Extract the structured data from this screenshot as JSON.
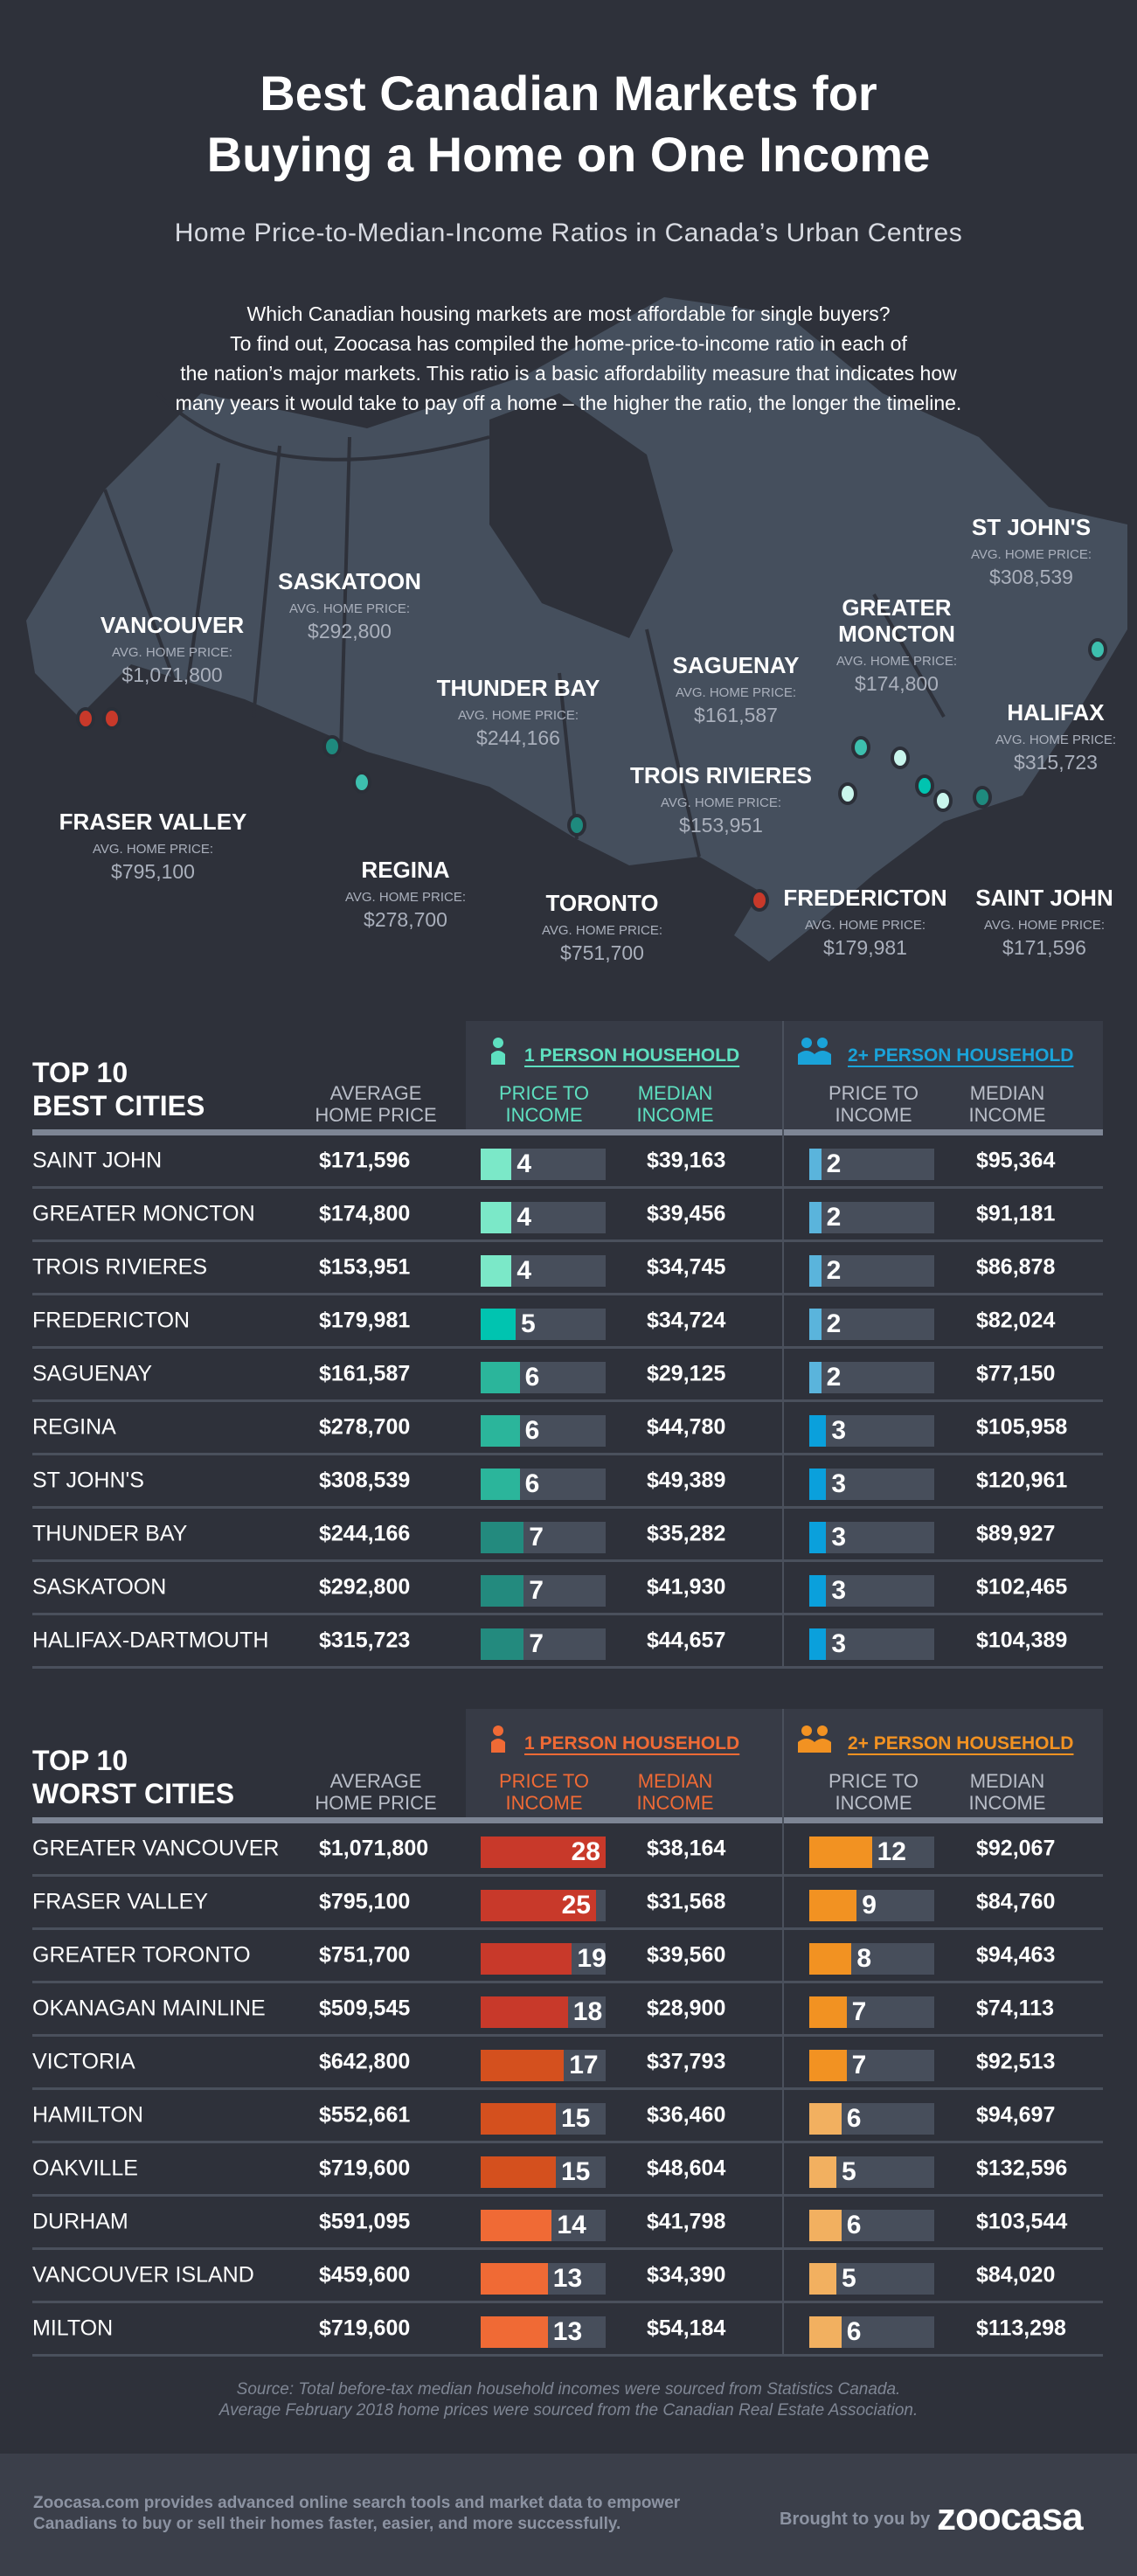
{
  "header": {
    "title_line1": "Best Canadian Markets for",
    "title_line2": "Buying a Home on One Income",
    "subtitle": "Home Price-to-Median-Income Ratios in Canada’s Urban Centres",
    "intro": [
      "Which Canadian housing markets are most affordable for single buyers?",
      "To find out, Zoocasa has compiled the home-price-to-income ratio in each of",
      "the nation’s major markets. This ratio is a basic affordability measure that indicates how",
      "many years it would take to pay off a home – the higher the ratio, the longer the timeline."
    ]
  },
  "map": {
    "price_label": "AVG. HOME PRICE:",
    "cities": [
      {
        "name": "VANCOUVER",
        "price": "$1,071,800",
        "color": "#c8392a"
      },
      {
        "name": "FRASER VALLEY",
        "price": "$795,100",
        "color": "#c8392a"
      },
      {
        "name": "SASKATOON",
        "price": "$292,800",
        "color": "#1e8a7e"
      },
      {
        "name": "REGINA",
        "price": "$278,700",
        "color": "#3dbfae"
      },
      {
        "name": "THUNDER BAY",
        "price": "$244,166",
        "color": "#1e8a7e"
      },
      {
        "name": "TORONTO",
        "price": "$751,700",
        "color": "#c8392a"
      },
      {
        "name": "SAGUENAY",
        "price": "$161,587",
        "color": "#3dbfae"
      },
      {
        "name": "TROIS RIVIERES",
        "price": "$153,951",
        "color": "#c9f5ec"
      },
      {
        "name": "GREATER",
        "name2": "MONCTON",
        "price": "$174,800",
        "color": "#c9f5ec"
      },
      {
        "name": "ST JOHN'S",
        "price": "$308,539",
        "color": "#3dbfae"
      },
      {
        "name": "HALIFAX",
        "price": "$315,723",
        "color": "#1e8a7e"
      },
      {
        "name": "FREDERICTON",
        "price": "$179,981",
        "color": "#00c4b0"
      },
      {
        "name": "SAINT JOHN",
        "price": "$171,596",
        "color": "#c9f5ec"
      }
    ]
  },
  "best": {
    "title1": "TOP 10",
    "title2": "BEST CITIES",
    "hh1": "1 PERSON HOUSEHOLD",
    "hh2": "2+ PERSON HOUSEHOLD",
    "accent1": "#5ee0c0",
    "accent2": "#1aa3d9",
    "cols": {
      "avg": "AVERAGE HOME PRICE",
      "pti": "PRICE TO INCOME",
      "med": "MEDIAN INCOME"
    },
    "rows": [
      {
        "city": "SAINT JOHN",
        "avg": "$171,596",
        "p1": 4,
        "m1": "$39,163",
        "p2": 2,
        "m2": "$95,364",
        "c1": "#7be8c8",
        "c2": "#5ab4dc"
      },
      {
        "city": "GREATER MONCTON",
        "avg": "$174,800",
        "p1": 4,
        "m1": "$39,456",
        "p2": 2,
        "m2": "$91,181",
        "c1": "#7be8c8",
        "c2": "#5ab4dc"
      },
      {
        "city": "TROIS RIVIERES",
        "avg": "$153,951",
        "p1": 4,
        "m1": "$34,745",
        "p2": 2,
        "m2": "$86,878",
        "c1": "#7be8c8",
        "c2": "#5ab4dc"
      },
      {
        "city": "FREDERICTON",
        "avg": "$179,981",
        "p1": 5,
        "m1": "$34,724",
        "p2": 2,
        "m2": "$82,024",
        "c1": "#00c4b0",
        "c2": "#5ab4dc"
      },
      {
        "city": "SAGUENAY",
        "avg": "$161,587",
        "p1": 6,
        "m1": "$29,125",
        "p2": 2,
        "m2": "$77,150",
        "c1": "#2bb59b",
        "c2": "#5ab4dc"
      },
      {
        "city": "REGINA",
        "avg": "$278,700",
        "p1": 6,
        "m1": "$44,780",
        "p2": 3,
        "m2": "$105,958",
        "c1": "#2bb59b",
        "c2": "#0aa0dc"
      },
      {
        "city": "ST JOHN'S",
        "avg": "$308,539",
        "p1": 6,
        "m1": "$49,389",
        "p2": 3,
        "m2": "$120,961",
        "c1": "#2bb59b",
        "c2": "#0aa0dc"
      },
      {
        "city": "THUNDER BAY",
        "avg": "$244,166",
        "p1": 7,
        "m1": "$35,282",
        "p2": 3,
        "m2": "$89,927",
        "c1": "#238a7e",
        "c2": "#0aa0dc"
      },
      {
        "city": "SASKATOON",
        "avg": "$292,800",
        "p1": 7,
        "m1": "$41,930",
        "p2": 3,
        "m2": "$102,465",
        "c1": "#238a7e",
        "c2": "#0aa0dc"
      },
      {
        "city": "HALIFAX-DARTMOUTH",
        "avg": "$315,723",
        "p1": 7,
        "m1": "$44,657",
        "p2": 3,
        "m2": "$104,389",
        "c1": "#238a7e",
        "c2": "#0aa0dc"
      }
    ]
  },
  "worst": {
    "title1": "TOP 10",
    "title2": "WORST CITIES",
    "hh1": "1 PERSON HOUSEHOLD",
    "hh2": "2+ PERSON HOUSEHOLD",
    "accent1": "#f06a35",
    "accent2": "#f29222",
    "cols": {
      "avg": "AVERAGE HOME PRICE",
      "pti": "PRICE TO INCOME",
      "med": "MEDIAN INCOME"
    },
    "rows": [
      {
        "city": "GREATER VANCOUVER",
        "avg": "$1,071,800",
        "p1": 28,
        "m1": "$38,164",
        "p2": 12,
        "m2": "$92,067",
        "c1": "#c8392a",
        "c2": "#f29222"
      },
      {
        "city": "FRASER VALLEY",
        "avg": "$795,100",
        "p1": 25,
        "m1": "$31,568",
        "p2": 9,
        "m2": "$84,760",
        "c1": "#c8392a",
        "c2": "#f29222"
      },
      {
        "city": "GREATER TORONTO",
        "avg": "$751,700",
        "p1": 19,
        "m1": "$39,560",
        "p2": 8,
        "m2": "$94,463",
        "c1": "#c8392a",
        "c2": "#f29222"
      },
      {
        "city": "OKANAGAN MAINLINE",
        "avg": "$509,545",
        "p1": 18,
        "m1": "$28,900",
        "p2": 7,
        "m2": "$74,113",
        "c1": "#c8392a",
        "c2": "#f29222"
      },
      {
        "city": "VICTORIA",
        "avg": "$642,800",
        "p1": 17,
        "m1": "$37,793",
        "p2": 7,
        "m2": "$92,513",
        "c1": "#d4501e",
        "c2": "#f29222"
      },
      {
        "city": "HAMILTON",
        "avg": "$552,661",
        "p1": 15,
        "m1": "$36,460",
        "p2": 6,
        "m2": "$94,697",
        "c1": "#d4501e",
        "c2": "#f2b060"
      },
      {
        "city": "OAKVILLE",
        "avg": "$719,600",
        "p1": 15,
        "m1": "$48,604",
        "p2": 5,
        "m2": "$132,596",
        "c1": "#d4501e",
        "c2": "#f2b060"
      },
      {
        "city": "DURHAM",
        "avg": "$591,095",
        "p1": 14,
        "m1": "$41,798",
        "p2": 6,
        "m2": "$103,544",
        "c1": "#f06a35",
        "c2": "#f2b060"
      },
      {
        "city": "VANCOUVER ISLAND",
        "avg": "$459,600",
        "p1": 13,
        "m1": "$34,390",
        "p2": 5,
        "m2": "$84,020",
        "c1": "#f06a35",
        "c2": "#f2b060"
      },
      {
        "city": "MILTON",
        "avg": "$719,600",
        "p1": 13,
        "m1": "$54,184",
        "p2": 6,
        "m2": "$113,298",
        "c1": "#f06a35",
        "c2": "#f2b060"
      }
    ]
  },
  "source": [
    "Source: Total before-tax median household incomes were sourced from Statistics Canada.",
    "Average February 2018 home prices were sourced from the Canadian Real Estate Association."
  ],
  "footer": {
    "text1": "Zoocasa.com provides advanced online search tools and market data to empower",
    "text2": "Canadians to buy or sell their homes faster, easier, and more successfully.",
    "brought": "Brought to you by",
    "logo": "zoocasa"
  }
}
